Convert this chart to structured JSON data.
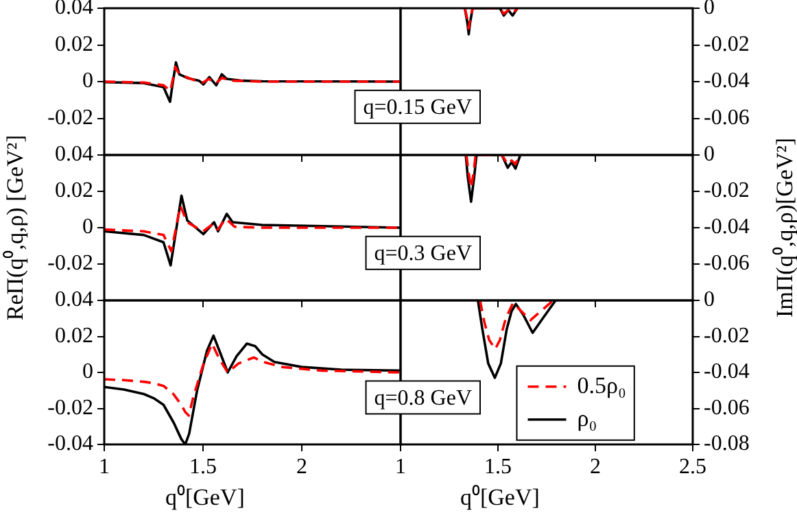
{
  "chart_data": [
    {
      "type": "line",
      "xlim": [
        1,
        2.5
      ],
      "xticks": [
        1,
        1.5,
        2
      ],
      "ylim": [
        -0.04,
        0.04
      ],
      "yticks": [
        -0.02,
        0,
        0.02,
        0.04
      ],
      "tick_labels": "y",
      "annotations": [
        "q=0.15 GeV"
      ],
      "series": [
        {
          "color": "#ff0000",
          "line_style": "dashed",
          "x": [
            1,
            1.2,
            1.3,
            1.335,
            1.36,
            1.38,
            1.45,
            1.5,
            1.53,
            1.565,
            1.595,
            1.65,
            1.8,
            2.5
          ],
          "values": [
            0,
            -0.0005,
            -0.002,
            -0.005,
            0.008,
            0.004,
            0.001,
            -0.0005,
            0.0015,
            -0.001,
            0.002,
            0.0005,
            0,
            0
          ]
        },
        {
          "color": "#000000",
          "line_style": "solid",
          "x": [
            1,
            1.2,
            1.3,
            1.333,
            1.345,
            1.363,
            1.38,
            1.42,
            1.48,
            1.502,
            1.532,
            1.567,
            1.595,
            1.62,
            1.7,
            1.8,
            2.5
          ],
          "values": [
            -0.0003,
            -0.0008,
            -0.003,
            -0.011,
            -0.002,
            0.0105,
            0.004,
            0.002,
            0.0005,
            -0.0015,
            0.0025,
            -0.002,
            0.004,
            0.0015,
            0.0005,
            0.0002,
            0
          ]
        }
      ]
    },
    {
      "type": "line",
      "xlim": [
        1,
        2.5
      ],
      "xticks": [
        1,
        1.5,
        2,
        2.5
      ],
      "ylim": [
        -0.08,
        0
      ],
      "yticks": [
        -0.06,
        -0.04,
        -0.02,
        0
      ],
      "tick_labels": "y",
      "series": [
        {
          "color": "#ff0000",
          "line_style": "dashed",
          "x": [
            1.33,
            1.343,
            1.35,
            1.357,
            1.37,
            1.51,
            1.53,
            1.553,
            1.575,
            1.6
          ],
          "values": [
            0,
            -0.006,
            -0.011,
            -0.006,
            0,
            0,
            -0.003,
            -0.001,
            -0.003,
            0
          ]
        },
        {
          "color": "#000000",
          "line_style": "solid",
          "x": [
            1.33,
            1.343,
            1.35,
            1.357,
            1.37,
            1.51,
            1.53,
            1.553,
            1.575,
            1.6
          ],
          "values": [
            0,
            -0.008,
            -0.0142,
            -0.008,
            0,
            0,
            -0.004,
            -0.001,
            -0.004,
            0
          ]
        }
      ]
    },
    {
      "type": "line",
      "xlim": [
        1,
        2.5
      ],
      "xticks": [
        1,
        1.5,
        2
      ],
      "ylim": [
        -0.04,
        0.04
      ],
      "yticks": [
        -0.02,
        0,
        0.02,
        0.04
      ],
      "tick_labels": "y",
      "ylabel": "ReΠ(q⁰,q,ρ) [GeV²]",
      "annotations": [
        "q=0.3 GeV"
      ],
      "series": [
        {
          "color": "#ff0000",
          "line_style": "dashed",
          "x": [
            1,
            1.2,
            1.3,
            1.34,
            1.385,
            1.42,
            1.5,
            1.55,
            1.575,
            1.615,
            1.66,
            1.8,
            2.5
          ],
          "values": [
            -0.001,
            -0.002,
            -0.004,
            -0.013,
            0.012,
            0.003,
            -0.002,
            0.002,
            -0.001,
            0.005,
            0.0005,
            0,
            0
          ]
        },
        {
          "color": "#000000",
          "line_style": "solid",
          "x": [
            1,
            1.2,
            1.3,
            1.336,
            1.391,
            1.42,
            1.502,
            1.556,
            1.576,
            1.62,
            1.65,
            1.8,
            2.5
          ],
          "values": [
            -0.002,
            -0.004,
            -0.008,
            -0.0207,
            0.0176,
            0.004,
            -0.0035,
            0.003,
            -0.002,
            0.0076,
            0.003,
            0.0015,
            0
          ]
        }
      ]
    },
    {
      "type": "line",
      "xlim": [
        1,
        2.5
      ],
      "xticks": [
        1,
        1.5,
        2,
        2.5
      ],
      "ylim": [
        -0.08,
        0
      ],
      "yticks": [
        -0.06,
        -0.04,
        -0.02,
        0
      ],
      "tick_labels": "y",
      "ylabel": "ImΠ(q⁰,q,ρ)[GeV²]",
      "series": [
        {
          "color": "#ff0000",
          "line_style": "dashed",
          "x": [
            1.338,
            1.35,
            1.362,
            1.375,
            1.385,
            1.52,
            1.55,
            1.57,
            1.59,
            1.61
          ],
          "values": [
            0,
            -0.01,
            -0.018,
            -0.01,
            0,
            0,
            -0.005,
            -0.003,
            -0.005,
            0
          ]
        },
        {
          "color": "#000000",
          "line_style": "solid",
          "x": [
            1.335,
            1.345,
            1.362,
            1.378,
            1.39,
            1.52,
            1.55,
            1.57,
            1.59,
            1.615
          ],
          "values": [
            0,
            -0.012,
            -0.0257,
            -0.012,
            0,
            0,
            -0.007,
            -0.004,
            -0.0075,
            0
          ]
        }
      ]
    },
    {
      "type": "line",
      "xlim": [
        1,
        2.5
      ],
      "xticks": [
        1,
        1.5,
        2
      ],
      "ylim": [
        -0.04,
        0.04
      ],
      "yticks": [
        -0.04,
        -0.02,
        0,
        0.02,
        0.04
      ],
      "xlabel": "q⁰[GeV]",
      "annotations": [
        "q=0.8 GeV"
      ],
      "series": [
        {
          "color": "#ff0000",
          "line_style": "dashed",
          "x": [
            1,
            1.1,
            1.2,
            1.25,
            1.3,
            1.35,
            1.39,
            1.41,
            1.428,
            1.45,
            1.5,
            1.546,
            1.58,
            1.625,
            1.68,
            1.757,
            1.8,
            1.9,
            2.1,
            2.5
          ],
          "values": [
            -0.0038,
            -0.0043,
            -0.0052,
            -0.006,
            -0.0075,
            -0.012,
            -0.018,
            -0.022,
            -0.024,
            -0.014,
            0.004,
            0.016,
            0.008,
            0,
            0.005,
            0.0083,
            0.006,
            0.003,
            0.001,
            0
          ]
        },
        {
          "color": "#000000",
          "line_style": "solid",
          "x": [
            1,
            1.1,
            1.2,
            1.25,
            1.3,
            1.352,
            1.39,
            1.41,
            1.43,
            1.47,
            1.52,
            1.553,
            1.59,
            1.625,
            1.67,
            1.722,
            1.764,
            1.8,
            1.861,
            2,
            2.2,
            2.5
          ],
          "values": [
            -0.0081,
            -0.0095,
            -0.012,
            -0.0143,
            -0.018,
            -0.028,
            -0.037,
            -0.04,
            -0.034,
            -0.01,
            0.012,
            0.0204,
            0.01,
            0,
            0.009,
            0.016,
            0.0146,
            0.01,
            0.0058,
            0.003,
            0.0015,
            0.001
          ]
        }
      ]
    },
    {
      "type": "line",
      "xlim": [
        1,
        2.5
      ],
      "xticks": [
        1,
        1.5,
        2,
        2.5
      ],
      "ylim": [
        -0.08,
        0
      ],
      "yticks": [
        -0.08,
        -0.06,
        -0.04,
        -0.02,
        0
      ],
      "xlabel": "q⁰[GeV]",
      "legend": "bottom right",
      "series": [
        {
          "name": "0.5ρ₀",
          "color": "#ff0000",
          "line_style": "dashed",
          "x": [
            1.408,
            1.43,
            1.455,
            1.486,
            1.51,
            1.54,
            1.577,
            1.62,
            1.667,
            1.72,
            1.784
          ],
          "values": [
            0,
            -0.012,
            -0.022,
            -0.027,
            -0.022,
            -0.01,
            -0.0015,
            -0.006,
            -0.011,
            -0.006,
            0
          ]
        },
        {
          "name": "ρ₀",
          "color": "#000000",
          "line_style": "solid",
          "x": [
            1.397,
            1.42,
            1.45,
            1.484,
            1.515,
            1.545,
            1.57,
            1.592,
            1.63,
            1.678,
            1.73,
            1.796
          ],
          "values": [
            0,
            -0.016,
            -0.035,
            -0.043,
            -0.035,
            -0.016,
            -0.006,
            -0.002,
            -0.008,
            -0.018,
            -0.01,
            0
          ]
        }
      ]
    }
  ]
}
